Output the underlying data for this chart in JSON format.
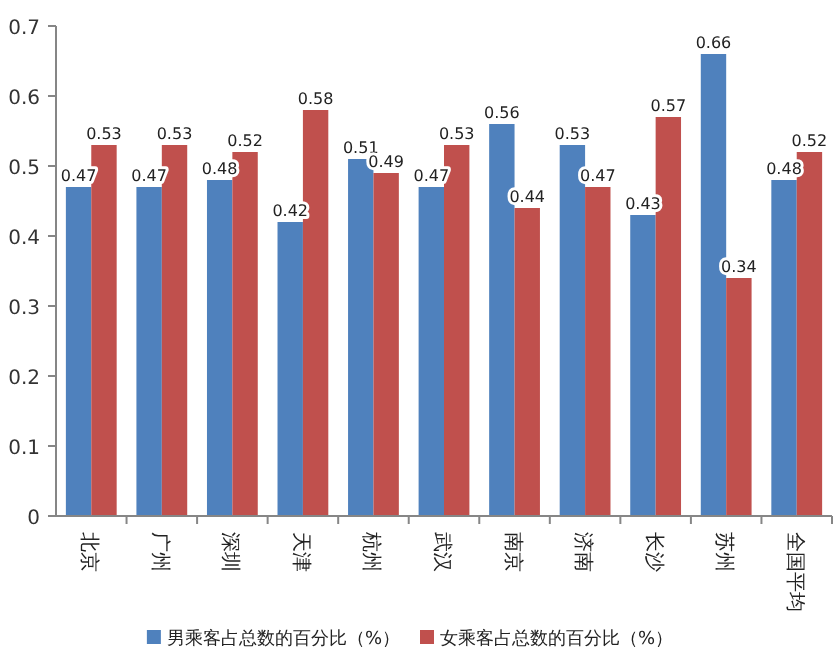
{
  "chart_data": {
    "type": "bar",
    "categories": [
      "北京",
      "广州",
      "深圳",
      "天津",
      "杭州",
      "武汉",
      "南京",
      "济南",
      "长沙",
      "苏州",
      "全国平均"
    ],
    "series": [
      {
        "name": "男乘客占总数的百分比（%）",
        "color": "#4f81bd",
        "values": [
          0.47,
          0.47,
          0.48,
          0.42,
          0.51,
          0.47,
          0.56,
          0.53,
          0.43,
          0.66,
          0.48
        ]
      },
      {
        "name": "女乘客占总数的百分比（%）",
        "color": "#c0504d",
        "values": [
          0.53,
          0.53,
          0.52,
          0.58,
          0.49,
          0.53,
          0.44,
          0.47,
          0.57,
          0.34,
          0.52
        ]
      }
    ],
    "ylim": [
      0,
      0.7
    ],
    "yticks": [
      0,
      0.1,
      0.2,
      0.3,
      0.4,
      0.5,
      0.6,
      0.7
    ],
    "data_labels": true,
    "grid": false,
    "legend": "bottom"
  }
}
